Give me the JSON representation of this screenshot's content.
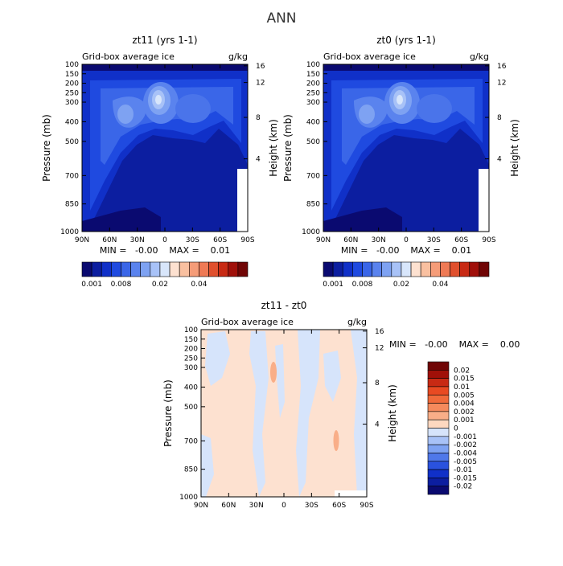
{
  "figure_title": "ANN",
  "chart_data": [
    {
      "type": "heatmap",
      "title": "zt11 (yrs 1-1)",
      "subtitle_left": "Grid-box average ice",
      "subtitle_right": "g/kg",
      "ylabel": "Pressure (mb)",
      "ylabel_right": "Height (km)",
      "x_ticks": [
        "90N",
        "60N",
        "30N",
        "0",
        "30S",
        "60S",
        "90S"
      ],
      "y_ticks": [
        "100",
        "150",
        "200",
        "250",
        "300",
        "400",
        "500",
        "700",
        "850",
        "1000"
      ],
      "y_ticks_right": [
        "16",
        "12",
        "8",
        "4"
      ],
      "stats": "MIN =   -0.00    MAX =    0.01",
      "colorbar_labels": [
        "0.001",
        "0.008",
        "0.02",
        "0.04"
      ],
      "colorbar_colors": [
        "#0a0a70",
        "#0c1ea0",
        "#1030c8",
        "#1f4ae0",
        "#3a66e8",
        "#5a83ee",
        "#7ea2f2",
        "#a8c2f7",
        "#d8e6fb",
        "#fde1d0",
        "#f9c0a0",
        "#f59c78",
        "#ef7a55",
        "#e0502e",
        "#c82a14",
        "#a0100a",
        "#700505"
      ]
    },
    {
      "type": "heatmap",
      "title": "zt0 (yrs 1-1)",
      "subtitle_left": "Grid-box average ice",
      "subtitle_right": "g/kg",
      "ylabel": "Pressure (mb)",
      "ylabel_right": "Height (km)",
      "x_ticks": [
        "90N",
        "60N",
        "30N",
        "0",
        "30S",
        "60S",
        "90S"
      ],
      "y_ticks": [
        "100",
        "150",
        "200",
        "250",
        "300",
        "400",
        "500",
        "700",
        "850",
        "1000"
      ],
      "y_ticks_right": [
        "16",
        "12",
        "8",
        "4"
      ],
      "stats": "MIN =   -0.00    MAX =    0.01",
      "colorbar_labels": [
        "0.001",
        "0.008",
        "0.02",
        "0.04"
      ],
      "colorbar_colors": [
        "#0a0a70",
        "#0c1ea0",
        "#1030c8",
        "#1f4ae0",
        "#3a66e8",
        "#5a83ee",
        "#7ea2f2",
        "#a8c2f7",
        "#d8e6fb",
        "#fde1d0",
        "#f9c0a0",
        "#f59c78",
        "#ef7a55",
        "#e0502e",
        "#c82a14",
        "#a0100a",
        "#700505"
      ]
    },
    {
      "type": "heatmap",
      "title": "zt11 - zt0",
      "subtitle_left": "Grid-box average ice",
      "subtitle_right": "g/kg",
      "ylabel": "Pressure (mb)",
      "ylabel_right": "Height (km)",
      "x_ticks": [
        "90N",
        "60N",
        "30N",
        "0",
        "30S",
        "60S",
        "90S"
      ],
      "y_ticks": [
        "100",
        "150",
        "200",
        "250",
        "300",
        "400",
        "500",
        "700",
        "850",
        "1000"
      ],
      "y_ticks_right": [
        "16",
        "12",
        "8",
        "4"
      ],
      "stats": "MIN =   -0.00    MAX =    0.00",
      "colorbar_labels": [
        "0.02",
        "0.015",
        "0.01",
        "0.005",
        "0.004",
        "0.002",
        "0.001",
        "0",
        "-0.001",
        "-0.002",
        "-0.004",
        "-0.005",
        "-0.01",
        "-0.015",
        "-0.02"
      ],
      "colorbar_colors": [
        "#700505",
        "#a01008",
        "#c82a14",
        "#e84a22",
        "#f06a3a",
        "#f58a5c",
        "#f9ae88",
        "#fdd8c0",
        "#d6e4fb",
        "#a8c2f7",
        "#7ea2f2",
        "#4f78ea",
        "#2a52de",
        "#1030c8",
        "#0c1ea0",
        "#0a0a70"
      ]
    }
  ]
}
